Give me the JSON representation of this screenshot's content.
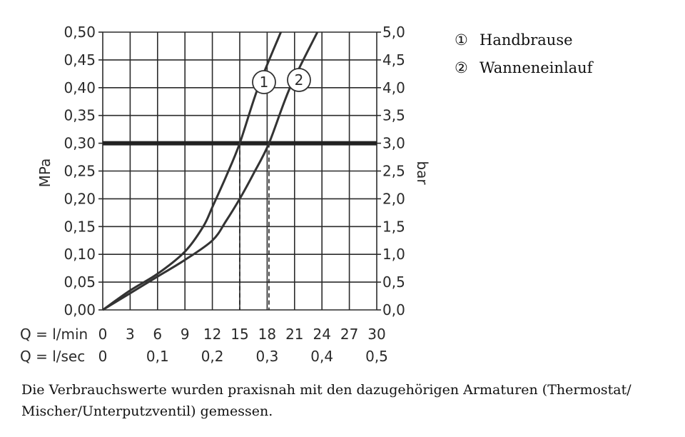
{
  "chart_data": {
    "type": "line",
    "left_axis": {
      "label": "MPa",
      "ticks": [
        "0,00",
        "0,05",
        "0,10",
        "0,15",
        "0,20",
        "0,25",
        "0,30",
        "0,35",
        "0,40",
        "0,45",
        "0,50"
      ],
      "range": [
        0,
        0.5
      ]
    },
    "right_axis": {
      "label": "bar",
      "ticks": [
        "0,0",
        "0,5",
        "1,0",
        "1,5",
        "2,0",
        "2,5",
        "3,0",
        "3,5",
        "4,0",
        "4,5",
        "5,0"
      ],
      "range": [
        0,
        5
      ]
    },
    "x_axis_lmin": {
      "label": "Q = l/min",
      "ticks": [
        "0",
        "3",
        "6",
        "9",
        "12",
        "15",
        "18",
        "21",
        "24",
        "27",
        "30"
      ],
      "range": [
        0,
        30
      ]
    },
    "x_axis_lsec": {
      "label": "Q = l/sec",
      "ticks": [
        "0",
        "0,1",
        "0,2",
        "0,3",
        "0,4",
        "0,5"
      ],
      "values": [
        0,
        0.1,
        0.2,
        0.3,
        0.4,
        0.5
      ]
    },
    "grid": true,
    "reference_line": {
      "y": 0.3
    },
    "drop_lines": [
      {
        "x": 15,
        "y": 0.3
      },
      {
        "x": 18.2,
        "y": 0.3
      }
    ],
    "series": [
      {
        "name": "Handbrause",
        "marker": "1",
        "x": [
          0,
          3,
          6,
          9,
          11,
          12,
          13.5,
          15,
          17,
          19.5
        ],
        "y": [
          0,
          0.035,
          0.065,
          0.105,
          0.15,
          0.185,
          0.24,
          0.3,
          0.4,
          0.5
        ]
      },
      {
        "name": "Wanneneinlauf",
        "marker": "2",
        "x": [
          0,
          3,
          6,
          9,
          12,
          13.5,
          15,
          16.5,
          18.2,
          20.5,
          23.5
        ],
        "y": [
          0,
          0.03,
          0.06,
          0.09,
          0.125,
          0.16,
          0.2,
          0.245,
          0.3,
          0.4,
          0.5
        ]
      }
    ]
  },
  "legend": [
    {
      "symbol": "①",
      "label": "Handbrause"
    },
    {
      "symbol": "②",
      "label": "Wanneneinlauf"
    }
  ],
  "caption": {
    "line1": "Die Verbrauchswerte wurden praxisnah mit den dazugehörigen Armaturen (Thermostat/",
    "line2": "Mischer/Unterputzventil) gemessen."
  }
}
